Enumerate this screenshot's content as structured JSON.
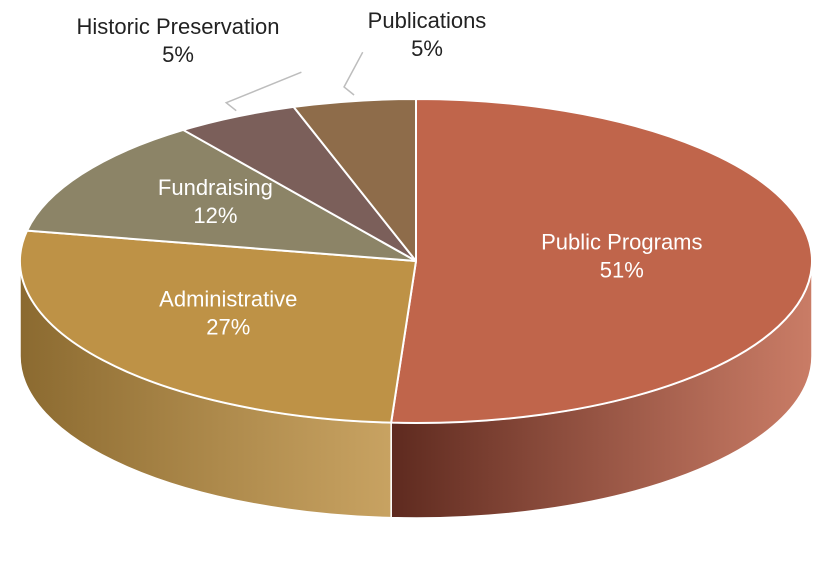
{
  "chart_data": {
    "type": "pie",
    "three_d": true,
    "start_angle_deg": 0,
    "direction": "clockwise",
    "categories": [
      "Public Programs",
      "Administrative",
      "Fundraising",
      "Historic Preservation",
      "Publications"
    ],
    "values": [
      51,
      27,
      12,
      5,
      5
    ],
    "value_suffix": "%",
    "label_text": [
      "51%",
      "27%",
      "12%",
      "5%",
      "5%"
    ],
    "colors": [
      "#C0654B",
      "#BE9246",
      "#8C8467",
      "#7B5F5A",
      "#8E6C4A"
    ],
    "side_colors": [
      "#5E2A1F",
      "#8B6A30",
      "#5F5A45",
      "#5A4240",
      "#5E4630"
    ],
    "label_colors": [
      "#ffffff",
      "#ffffff",
      "#ffffff",
      "#222222",
      "#222222"
    ],
    "edge_color": "#ffffff",
    "leader_line_color": "#BDBDBD"
  }
}
